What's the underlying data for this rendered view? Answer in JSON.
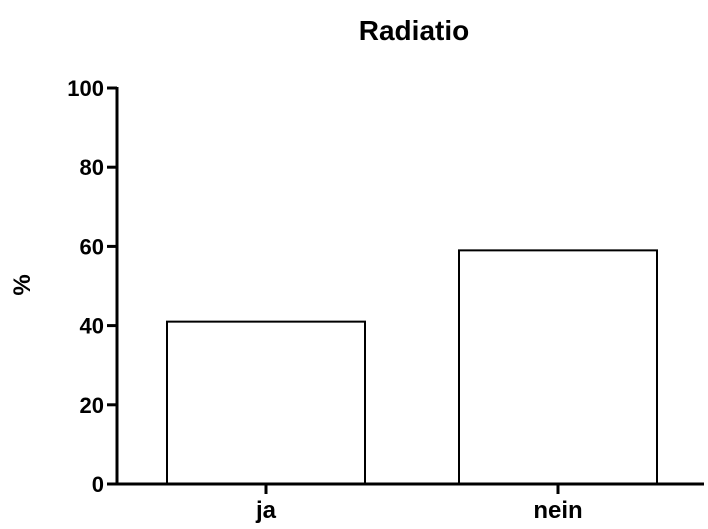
{
  "chart_data": {
    "type": "bar",
    "title": "Radiatio",
    "ylabel": "%",
    "xlabel": "",
    "categories": [
      "ja",
      "nein"
    ],
    "values": [
      41,
      59
    ],
    "ylim": [
      0,
      100
    ],
    "yticks": [
      "0",
      "20",
      "40",
      "60",
      "80",
      "100"
    ],
    "grid": false,
    "colors": {
      "bar_fill": "#ffffff",
      "bar_stroke": "#000000",
      "axis": "#000000"
    }
  }
}
